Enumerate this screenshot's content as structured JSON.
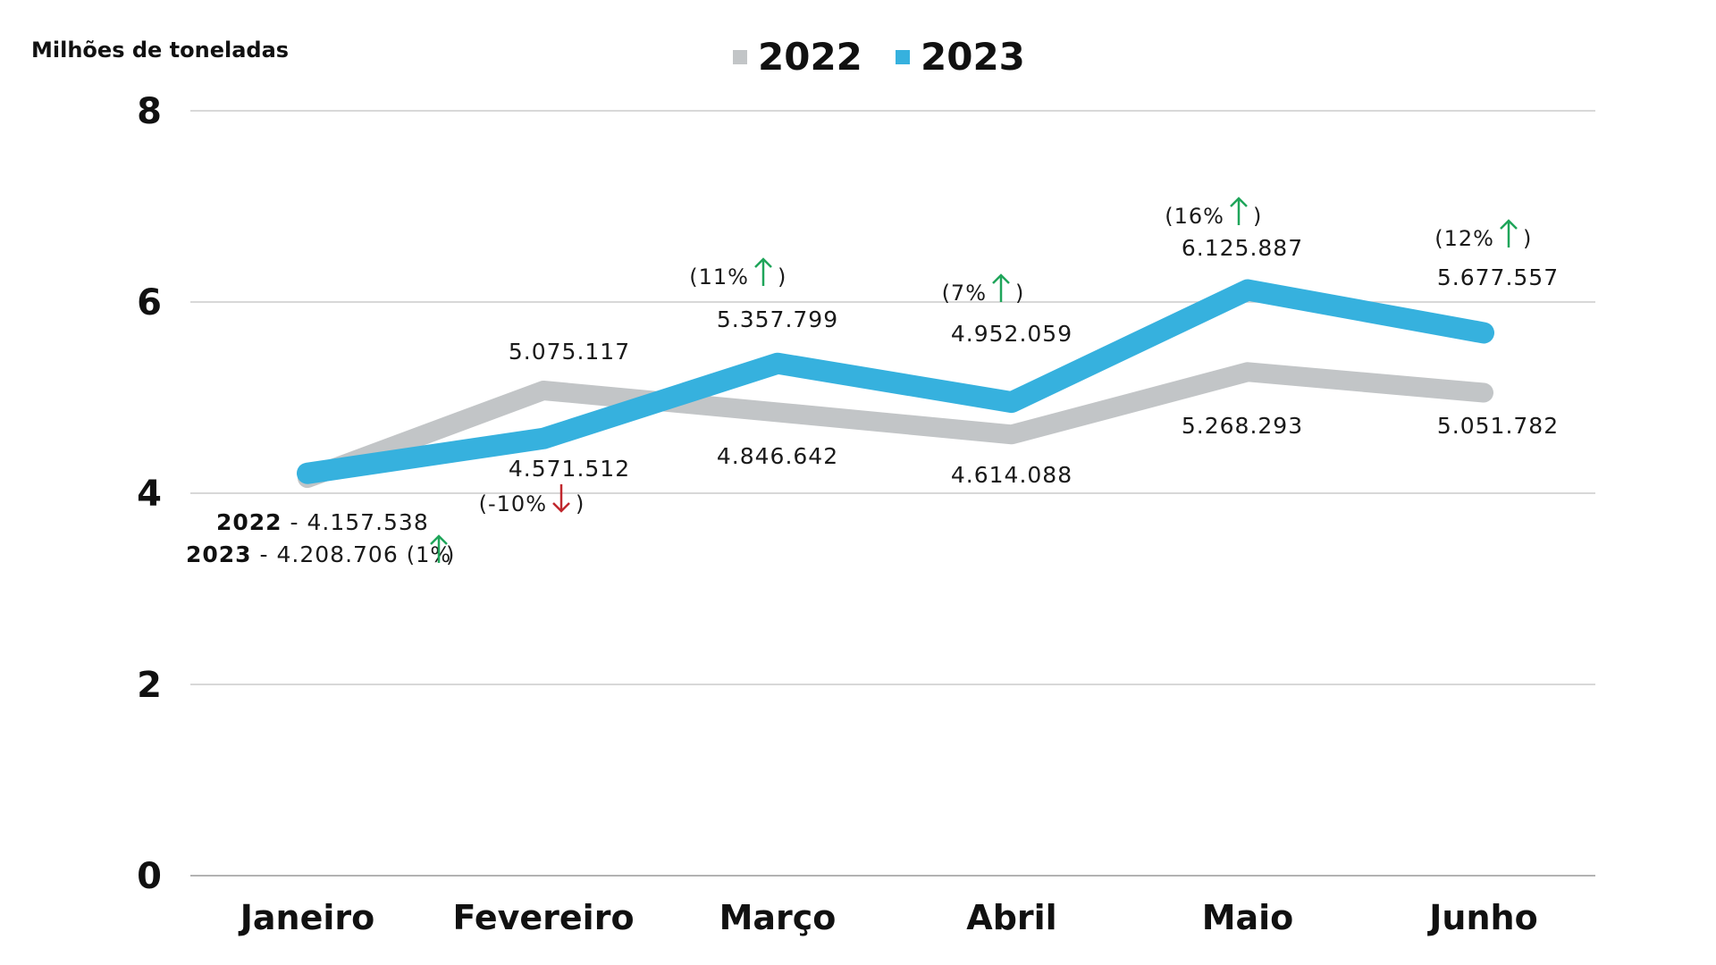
{
  "chart_data": {
    "type": "line",
    "ylabel": "Milhões de toneladas",
    "ylim": [
      0,
      8
    ],
    "yticks": [
      "0",
      "2",
      "4",
      "6",
      "8"
    ],
    "grid": true,
    "legend_position": "top-center",
    "categories": [
      "Janeiro",
      "Fevereiro",
      "Março",
      "Abril",
      "Maio",
      "Junho"
    ],
    "series": [
      {
        "name": "2022",
        "color": "#c2c5c7",
        "values": [
          4.157538,
          5.075117,
          4.846642,
          4.614088,
          5.268293,
          5.051782
        ],
        "labels": [
          "4.157.538",
          "5.075.117",
          "4.846.642",
          "4.614.088",
          "5.268.293",
          "5.051.782"
        ]
      },
      {
        "name": "2023",
        "color": "#36b1de",
        "values": [
          4.208706,
          4.571512,
          5.357799,
          4.952059,
          6.125887,
          5.677557
        ],
        "labels": [
          "4.208.706",
          "4.571.512",
          "5.357.799",
          "4.952.059",
          "6.125.887",
          "5.677.557"
        ]
      }
    ],
    "changes": [
      {
        "month": "Janeiro",
        "text": "(1%",
        "direction": "up"
      },
      {
        "month": "Fevereiro",
        "text": "(-10%",
        "direction": "down"
      },
      {
        "month": "Março",
        "text": "(11%",
        "direction": "up"
      },
      {
        "month": "Abril",
        "text": "(7%",
        "direction": "up"
      },
      {
        "month": "Maio",
        "text": "(16%",
        "direction": "up"
      },
      {
        "month": "Junho",
        "text": "(12%",
        "direction": "up"
      }
    ],
    "annotation_janeiro": {
      "year_2022": "2022",
      "year_2023": "2023",
      "separator": " - "
    },
    "colors": {
      "up_arrow": "#1fa55a",
      "down_arrow": "#c0272d"
    }
  }
}
